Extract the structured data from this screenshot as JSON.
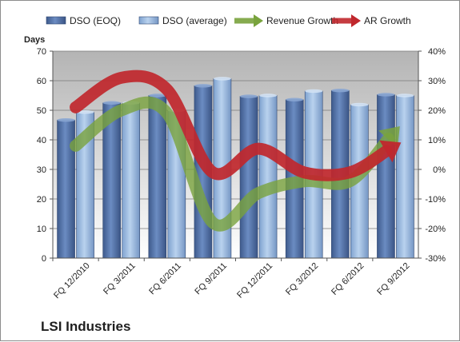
{
  "chart_data": {
    "type": "bar",
    "title": "",
    "company": "LSI Industries",
    "ylabel": "Days",
    "categories": [
      "FQ 12/2010",
      "FQ 3/2011",
      "FQ 6/2011",
      "FQ 9/2011",
      "FQ 12/2011",
      "FQ 3/2012",
      "FQ 6/2012",
      "FQ 9/2012"
    ],
    "ylim": [
      0,
      70
    ],
    "yticks": [
      "0",
      "10",
      "20",
      "30",
      "40",
      "50",
      "60",
      "70"
    ],
    "y2lim": [
      -30,
      40
    ],
    "y2ticks": [
      "-30%",
      "-20%",
      "-10%",
      "0%",
      "10%",
      "20%",
      "30%",
      "40%"
    ],
    "legend_position": "top",
    "grid": true,
    "series": [
      {
        "name": "DSO (EOQ)",
        "kind": "bar",
        "axis": "left",
        "color": "#4f6fa3",
        "values": [
          46.7,
          52.5,
          55.0,
          58.3,
          54.7,
          53.6,
          56.7,
          55.3
        ]
      },
      {
        "name": "DSO (average)",
        "kind": "bar",
        "axis": "left",
        "color": "#8fb2dc",
        "values": [
          49.4,
          52.5,
          50.0,
          60.7,
          55.0,
          56.5,
          51.9,
          55.0
        ]
      },
      {
        "name": "Revenue Growth",
        "kind": "line",
        "axis": "right",
        "color": "#79a33d",
        "values": [
          8,
          20,
          19,
          -18,
          -8,
          -4,
          -4,
          13
        ]
      },
      {
        "name": "AR Growth",
        "kind": "line",
        "axis": "right",
        "color": "#c0272d",
        "values": [
          21,
          31,
          27,
          -1,
          7,
          -1,
          -1,
          8
        ]
      }
    ]
  }
}
